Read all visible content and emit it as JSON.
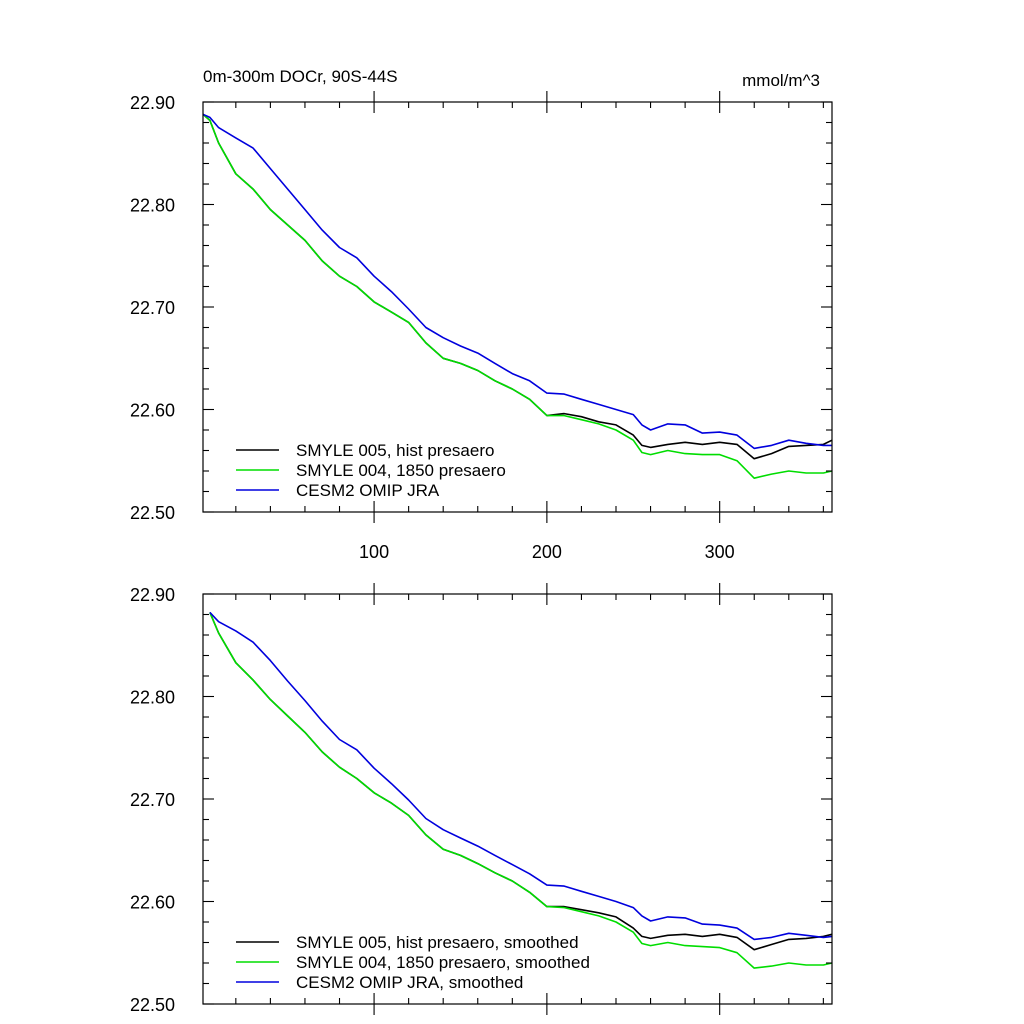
{
  "chart_data": [
    {
      "type": "line",
      "title_left": "0m-300m DOCr, 90S-44S",
      "title_right": "mmol/m^3",
      "xlim": [
        1,
        365
      ],
      "ylim": [
        22.5,
        22.9
      ],
      "xticks": [
        100,
        200,
        300
      ],
      "xtick_labels": [
        "100",
        "200",
        "300"
      ],
      "yticks": [
        22.5,
        22.6,
        22.7,
        22.8,
        22.9
      ],
      "ytick_labels": [
        "22.50",
        "22.60",
        "22.70",
        "22.80",
        "22.90"
      ],
      "legend_position": "bottom-left",
      "series": [
        {
          "name": "SMYLE 005, hist presaero",
          "color": "#000000",
          "x": [
            1,
            5,
            10,
            20,
            30,
            40,
            50,
            60,
            70,
            80,
            90,
            100,
            110,
            120,
            130,
            140,
            150,
            160,
            170,
            180,
            190,
            200,
            210,
            220,
            230,
            240,
            250,
            255,
            260,
            270,
            280,
            290,
            300,
            310,
            320,
            330,
            340,
            350,
            360,
            365
          ],
          "values": [
            22.888,
            22.882,
            22.86,
            22.83,
            22.815,
            22.795,
            22.78,
            22.765,
            22.745,
            22.73,
            22.72,
            22.705,
            22.695,
            22.685,
            22.665,
            22.65,
            22.645,
            22.638,
            22.628,
            22.62,
            22.61,
            22.594,
            22.596,
            22.593,
            22.588,
            22.585,
            22.575,
            22.565,
            22.563,
            22.566,
            22.568,
            22.566,
            22.568,
            22.566,
            22.552,
            22.557,
            22.564,
            22.565,
            22.566,
            22.57
          ]
        },
        {
          "name": "SMYLE 004, 1850 presaero",
          "color": "#00dd00",
          "x": [
            1,
            5,
            10,
            20,
            30,
            40,
            50,
            60,
            70,
            80,
            90,
            100,
            110,
            120,
            130,
            140,
            150,
            160,
            170,
            180,
            190,
            200,
            210,
            220,
            230,
            240,
            250,
            255,
            260,
            270,
            280,
            290,
            300,
            310,
            320,
            330,
            340,
            350,
            360,
            365
          ],
          "values": [
            22.888,
            22.882,
            22.86,
            22.83,
            22.815,
            22.795,
            22.78,
            22.765,
            22.745,
            22.73,
            22.72,
            22.705,
            22.695,
            22.685,
            22.665,
            22.65,
            22.645,
            22.638,
            22.628,
            22.62,
            22.61,
            22.594,
            22.594,
            22.59,
            22.586,
            22.58,
            22.57,
            22.558,
            22.556,
            22.56,
            22.557,
            22.556,
            22.556,
            22.55,
            22.533,
            22.537,
            22.54,
            22.538,
            22.538,
            22.54
          ]
        },
        {
          "name": "CESM2 OMIP JRA",
          "color": "#0000dd",
          "x": [
            1,
            5,
            10,
            20,
            30,
            40,
            50,
            60,
            70,
            80,
            90,
            100,
            110,
            120,
            130,
            140,
            150,
            160,
            170,
            180,
            190,
            200,
            210,
            220,
            230,
            240,
            250,
            255,
            260,
            270,
            280,
            290,
            300,
            310,
            320,
            330,
            340,
            350,
            360,
            365
          ],
          "values": [
            22.888,
            22.885,
            22.875,
            22.865,
            22.855,
            22.835,
            22.815,
            22.795,
            22.775,
            22.758,
            22.748,
            22.73,
            22.715,
            22.698,
            22.68,
            22.67,
            22.662,
            22.655,
            22.645,
            22.635,
            22.628,
            22.616,
            22.615,
            22.61,
            22.605,
            22.6,
            22.595,
            22.585,
            22.58,
            22.586,
            22.585,
            22.577,
            22.578,
            22.575,
            22.562,
            22.565,
            22.57,
            22.567,
            22.565,
            22.565
          ]
        }
      ]
    },
    {
      "type": "line",
      "xlim": [
        1,
        365
      ],
      "ylim": [
        22.5,
        22.9
      ],
      "xticks": [
        100,
        200,
        300
      ],
      "yticks": [
        22.5,
        22.6,
        22.7,
        22.8,
        22.9
      ],
      "ytick_labels": [
        "22.50",
        "22.60",
        "22.70",
        "22.80",
        "22.90"
      ],
      "legend_position": "bottom-left",
      "series": [
        {
          "name": "SMYLE 005, hist presaero, smoothed",
          "color": "#000000",
          "x": [
            5,
            10,
            20,
            30,
            40,
            50,
            60,
            70,
            80,
            90,
            100,
            110,
            120,
            130,
            140,
            150,
            160,
            170,
            180,
            190,
            200,
            210,
            220,
            230,
            240,
            250,
            255,
            260,
            270,
            280,
            290,
            300,
            310,
            320,
            330,
            340,
            350,
            360,
            365
          ],
          "values": [
            22.882,
            22.862,
            22.833,
            22.816,
            22.797,
            22.781,
            22.765,
            22.746,
            22.731,
            22.72,
            22.706,
            22.696,
            22.684,
            22.665,
            22.651,
            22.645,
            22.637,
            22.628,
            22.62,
            22.609,
            22.595,
            22.595,
            22.592,
            22.589,
            22.585,
            22.574,
            22.566,
            22.564,
            22.567,
            22.568,
            22.566,
            22.568,
            22.565,
            22.553,
            22.558,
            22.563,
            22.564,
            22.566,
            22.568
          ]
        },
        {
          "name": "SMYLE 004, 1850 presaero, smoothed",
          "color": "#00dd00",
          "x": [
            5,
            10,
            20,
            30,
            40,
            50,
            60,
            70,
            80,
            90,
            100,
            110,
            120,
            130,
            140,
            150,
            160,
            170,
            180,
            190,
            200,
            210,
            220,
            230,
            240,
            250,
            255,
            260,
            270,
            280,
            290,
            300,
            310,
            320,
            330,
            340,
            350,
            360,
            365
          ],
          "values": [
            22.882,
            22.862,
            22.833,
            22.816,
            22.797,
            22.781,
            22.765,
            22.746,
            22.731,
            22.72,
            22.706,
            22.696,
            22.684,
            22.665,
            22.651,
            22.645,
            22.637,
            22.628,
            22.62,
            22.609,
            22.595,
            22.594,
            22.59,
            22.586,
            22.58,
            22.57,
            22.559,
            22.557,
            22.56,
            22.557,
            22.556,
            22.555,
            22.55,
            22.535,
            22.537,
            22.54,
            22.538,
            22.538,
            22.54
          ]
        },
        {
          "name": "CESM2 OMIP JRA, smoothed",
          "color": "#0000dd",
          "x": [
            5,
            10,
            20,
            30,
            40,
            50,
            60,
            70,
            80,
            90,
            100,
            110,
            120,
            130,
            140,
            150,
            160,
            170,
            180,
            190,
            200,
            210,
            220,
            230,
            240,
            250,
            255,
            260,
            270,
            280,
            290,
            300,
            310,
            320,
            330,
            340,
            350,
            360,
            365
          ],
          "values": [
            22.882,
            22.873,
            22.864,
            22.853,
            22.835,
            22.815,
            22.796,
            22.776,
            22.758,
            22.748,
            22.73,
            22.715,
            22.699,
            22.681,
            22.67,
            22.662,
            22.654,
            22.645,
            22.636,
            22.627,
            22.616,
            22.615,
            22.61,
            22.605,
            22.6,
            22.594,
            22.586,
            22.581,
            22.585,
            22.584,
            22.578,
            22.577,
            22.574,
            22.563,
            22.565,
            22.569,
            22.567,
            22.565,
            22.566
          ]
        }
      ]
    }
  ]
}
